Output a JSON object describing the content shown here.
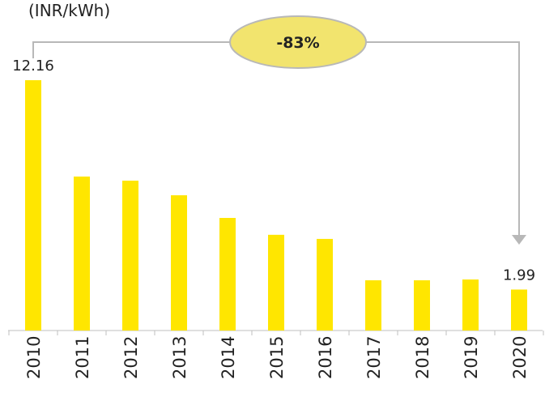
{
  "chart_data": {
    "type": "bar",
    "subtitle": "(INR/kWh)",
    "annotation": "-83%",
    "categories": [
      "2010",
      "2011",
      "2012",
      "2013",
      "2014",
      "2015",
      "2016",
      "2017",
      "2018",
      "2019",
      "2020"
    ],
    "values": [
      12.16,
      7.48,
      7.28,
      6.57,
      5.47,
      4.65,
      4.45,
      2.44,
      2.44,
      2.48,
      1.99
    ],
    "value_labels": [
      "12.16",
      null,
      null,
      null,
      null,
      null,
      null,
      null,
      null,
      null,
      "1.99"
    ],
    "color": "#ffe600"
  }
}
